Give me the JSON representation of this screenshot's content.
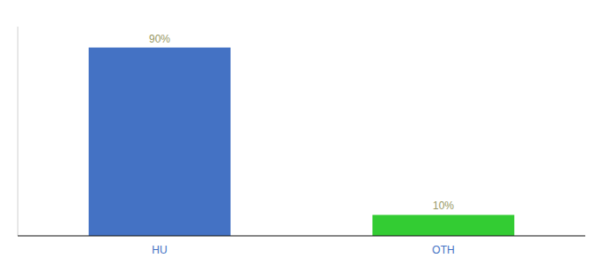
{
  "chart_data": {
    "type": "bar",
    "categories": [
      "HU",
      "OTH"
    ],
    "values": [
      90,
      10
    ],
    "value_labels": [
      "90%",
      "10%"
    ],
    "colors": [
      "#4472c4",
      "#33cc33"
    ],
    "ylim": [
      0,
      100
    ],
    "data_labels": true,
    "tick_labels": "x",
    "grid": false
  }
}
